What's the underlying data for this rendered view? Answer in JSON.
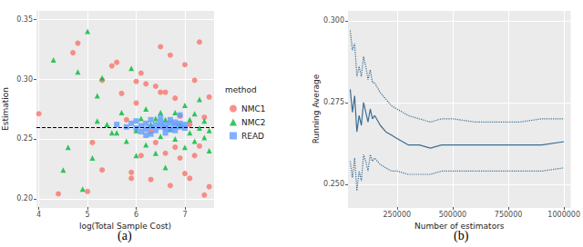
{
  "chart_data": [
    {
      "type": "scatter",
      "caption": "(a)",
      "x_label": "log(Total Sample Cost)",
      "y_label": "Estimation",
      "legend_title": "method",
      "legend": "right",
      "grid": true,
      "xlim": [
        3.95,
        7.6
      ],
      "xticks": [
        4,
        5,
        6,
        7
      ],
      "ylim": [
        0.193,
        0.357
      ],
      "yticks": [
        {
          "value": 0.2,
          "label": "0.20"
        },
        {
          "value": 0.25,
          "label": "0.25"
        },
        {
          "value": 0.3,
          "label": "0.30"
        },
        {
          "value": 0.35,
          "label": "0.35"
        }
      ],
      "reference_line": {
        "value": 0.261,
        "line_style": "dashed"
      },
      "series": [
        {
          "name": "NMC1",
          "color": "#F8766D",
          "marker": "circle",
          "x": [
            4.0,
            4.4,
            4.7,
            4.8,
            5.0,
            5.1,
            5.3,
            5.3,
            5.5,
            5.6,
            5.7,
            5.8,
            5.9,
            6.0,
            6.0,
            6.1,
            6.1,
            6.2,
            6.3,
            6.3,
            6.4,
            6.5,
            6.5,
            6.6,
            6.6,
            6.7,
            6.7,
            6.8,
            6.8,
            6.9,
            6.9,
            7.0,
            7.0,
            7.1,
            7.1,
            7.2,
            7.2,
            7.3,
            7.3,
            7.4,
            7.4,
            7.5,
            7.5,
            6.4,
            5.9
          ],
          "values": [
            0.271,
            0.204,
            0.322,
            0.33,
            0.206,
            0.247,
            0.299,
            0.224,
            0.311,
            0.314,
            0.288,
            0.266,
            0.222,
            0.298,
            0.28,
            0.236,
            0.305,
            0.296,
            0.256,
            0.216,
            0.247,
            0.327,
            0.289,
            0.289,
            0.238,
            0.211,
            0.32,
            0.243,
            0.284,
            0.234,
            0.269,
            0.312,
            0.221,
            0.217,
            0.262,
            0.299,
            0.236,
            0.244,
            0.331,
            0.203,
            0.268,
            0.21,
            0.285,
            0.294,
            0.217
          ]
        },
        {
          "name": "NMC2",
          "color": "#00BA38",
          "marker": "triangle",
          "x": [
            4.3,
            4.5,
            4.6,
            4.8,
            4.9,
            5.0,
            5.1,
            5.2,
            5.3,
            5.4,
            5.5,
            5.6,
            5.7,
            5.8,
            5.9,
            6.0,
            6.0,
            6.1,
            6.2,
            6.2,
            6.3,
            6.4,
            6.4,
            6.5,
            6.5,
            6.6,
            6.6,
            6.7,
            6.8,
            6.8,
            6.9,
            7.0,
            7.0,
            7.1,
            7.1,
            7.2,
            7.2,
            7.3,
            7.3,
            7.4,
            7.4,
            7.5,
            7.5,
            5.2
          ],
          "values": [
            0.316,
            0.224,
            0.243,
            0.306,
            0.208,
            0.34,
            0.234,
            0.286,
            0.301,
            0.262,
            0.255,
            0.255,
            0.272,
            0.248,
            0.309,
            0.257,
            0.236,
            0.267,
            0.275,
            0.245,
            0.262,
            0.267,
            0.238,
            0.272,
            0.252,
            0.266,
            0.226,
            0.258,
            0.272,
            0.25,
            0.262,
            0.243,
            0.278,
            0.255,
            0.266,
            0.248,
            0.271,
            0.259,
            0.283,
            0.251,
            0.265,
            0.24,
            0.257,
            0.265
          ]
        },
        {
          "name": "READ",
          "color": "#619CFF",
          "marker": "square",
          "x": [
            5.6,
            5.8,
            5.9,
            6.0,
            6.0,
            6.1,
            6.1,
            6.2,
            6.2,
            6.3,
            6.3,
            6.3,
            6.4,
            6.4,
            6.5,
            6.5,
            6.5,
            6.6,
            6.6,
            6.6,
            6.7,
            6.7,
            6.7,
            6.8,
            6.8,
            6.8,
            6.9,
            6.9,
            7.0,
            7.0,
            6.9,
            6.2
          ],
          "values": [
            0.262,
            0.26,
            0.263,
            0.259,
            0.265,
            0.261,
            0.256,
            0.263,
            0.258,
            0.266,
            0.26,
            0.254,
            0.262,
            0.257,
            0.264,
            0.26,
            0.268,
            0.262,
            0.255,
            0.259,
            0.263,
            0.258,
            0.266,
            0.261,
            0.257,
            0.264,
            0.26,
            0.263,
            0.259,
            0.262,
            0.27,
            0.253
          ]
        }
      ]
    },
    {
      "type": "line",
      "caption": "(b)",
      "x_label": "Number of estimators",
      "y_label": "Running Average",
      "grid": true,
      "xlim": [
        30000,
        1030000
      ],
      "xticks": [
        250000,
        500000,
        750000,
        1000000
      ],
      "ylim": [
        0.243,
        0.303
      ],
      "yticks": [
        {
          "value": 0.25,
          "label": "0.250"
        },
        {
          "value": 0.275,
          "label": "0.275"
        },
        {
          "value": 0.3,
          "label": "0.300"
        }
      ],
      "x": [
        40000,
        50000,
        60000,
        70000,
        80000,
        90000,
        100000,
        110000,
        120000,
        130000,
        140000,
        150000,
        175000,
        200000,
        225000,
        250000,
        300000,
        350000,
        400000,
        450000,
        500000,
        600000,
        700000,
        800000,
        900000,
        1000000
      ],
      "series": [
        {
          "color": "#3B6E94",
          "line_style": "solid",
          "values": [
            0.279,
            0.272,
            0.277,
            0.266,
            0.271,
            0.268,
            0.275,
            0.272,
            0.269,
            0.273,
            0.27,
            0.271,
            0.268,
            0.266,
            0.265,
            0.264,
            0.262,
            0.262,
            0.261,
            0.262,
            0.262,
            0.262,
            0.262,
            0.262,
            0.262,
            0.263
          ]
        },
        {
          "color": "#3B6E94",
          "line_style": "dotted",
          "values": [
            0.297,
            0.291,
            0.293,
            0.283,
            0.286,
            0.283,
            0.289,
            0.286,
            0.282,
            0.285,
            0.281,
            0.281,
            0.278,
            0.276,
            0.274,
            0.273,
            0.271,
            0.27,
            0.269,
            0.27,
            0.27,
            0.269,
            0.269,
            0.269,
            0.27,
            0.27
          ]
        },
        {
          "color": "#3B6E94",
          "line_style": "dotted",
          "values": [
            0.257,
            0.252,
            0.258,
            0.248,
            0.254,
            0.251,
            0.259,
            0.257,
            0.254,
            0.259,
            0.257,
            0.258,
            0.256,
            0.255,
            0.254,
            0.254,
            0.253,
            0.253,
            0.253,
            0.254,
            0.254,
            0.254,
            0.254,
            0.254,
            0.254,
            0.255
          ]
        }
      ]
    }
  ]
}
